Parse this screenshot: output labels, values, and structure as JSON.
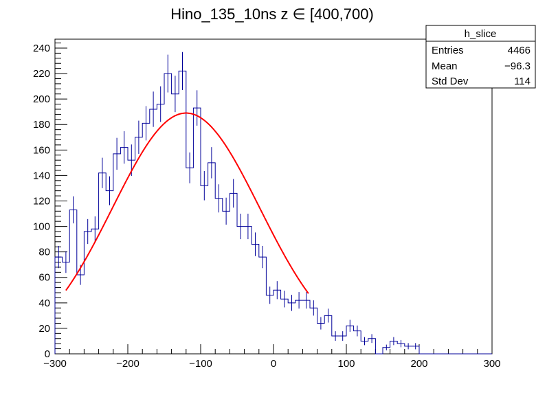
{
  "chart_data": {
    "type": "histogram",
    "title": "Hino_135_10ns z  ∈ [400,700)",
    "xlim": [
      -300,
      300
    ],
    "ylim": [
      0,
      247
    ],
    "bin_width": 10,
    "x_ticks": [
      {
        "value": -300,
        "label": "−300"
      },
      {
        "value": -200,
        "label": "−200"
      },
      {
        "value": -100,
        "label": "−100"
      },
      {
        "value": 0,
        "label": "0"
      },
      {
        "value": 100,
        "label": "100"
      },
      {
        "value": 200,
        "label": "200"
      },
      {
        "value": 300,
        "label": "300"
      }
    ],
    "y_ticks": [
      {
        "value": 0,
        "label": "0"
      },
      {
        "value": 20,
        "label": "20"
      },
      {
        "value": 40,
        "label": "40"
      },
      {
        "value": 60,
        "label": "60"
      },
      {
        "value": 80,
        "label": "80"
      },
      {
        "value": 100,
        "label": "100"
      },
      {
        "value": 120,
        "label": "120"
      },
      {
        "value": 140,
        "label": "140"
      },
      {
        "value": 160,
        "label": "160"
      },
      {
        "value": 180,
        "label": "180"
      },
      {
        "value": 200,
        "label": "200"
      },
      {
        "value": 220,
        "label": "220"
      },
      {
        "value": 240,
        "label": "240"
      }
    ],
    "bin_low_edges": [
      -300,
      -290,
      -280,
      -270,
      -260,
      -250,
      -240,
      -230,
      -220,
      -210,
      -200,
      -190,
      -180,
      -170,
      -160,
      -150,
      -140,
      -130,
      -120,
      -110,
      -100,
      -90,
      -80,
      -70,
      -60,
      -50,
      -40,
      -30,
      -20,
      -10,
      0,
      10,
      20,
      30,
      40,
      50,
      60,
      70,
      80,
      90,
      100,
      110,
      120,
      130,
      140,
      150,
      160,
      170,
      180,
      190,
      200,
      210,
      220,
      230,
      240,
      250,
      260,
      270,
      280,
      290
    ],
    "counts": [
      76,
      72,
      113,
      62,
      96,
      98,
      142,
      128,
      157,
      162,
      152,
      170,
      181,
      192,
      196,
      220,
      204,
      222,
      146,
      193,
      132,
      150,
      122,
      112,
      126,
      100,
      100,
      86,
      76,
      46,
      50,
      43,
      40,
      42,
      42,
      36,
      24,
      30,
      14,
      14,
      22,
      18,
      10,
      12,
      0,
      5,
      10,
      8,
      6,
      6,
      0,
      0,
      0,
      0,
      0,
      0,
      0,
      0,
      0,
      0
    ],
    "fit": {
      "name": "gaussian-fit",
      "color": "#ff0000",
      "amplitude": 189,
      "mean": -120,
      "sigma": 101,
      "x_range": [
        -285,
        48
      ]
    },
    "histogram_color": "#000099",
    "stats_box": {
      "name": "h_slice",
      "rows": [
        {
          "label": "Entries",
          "value": "4466"
        },
        {
          "label": "Mean",
          "value": "−96.3"
        },
        {
          "label": "Std Dev",
          "value": "114"
        }
      ]
    }
  }
}
